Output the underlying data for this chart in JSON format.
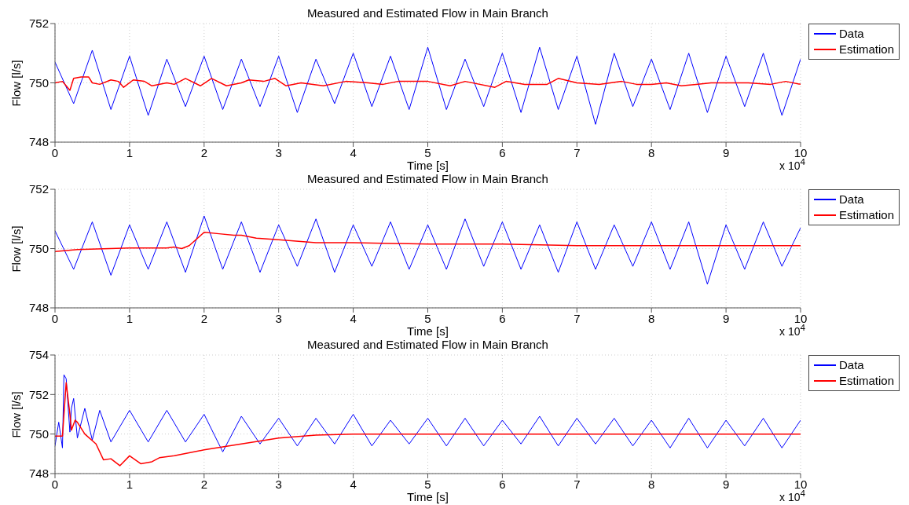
{
  "chart_data": [
    {
      "type": "line",
      "title": "Measured and Estimated Flow in Main Branch",
      "xlabel": "Time [s]",
      "ylabel": "Flow [l/s]",
      "annotations": [
        "x 10$^{4}$"
      ],
      "xlim": [
        0,
        10
      ],
      "xticks": [
        0,
        1,
        2,
        3,
        4,
        5,
        6,
        7,
        8,
        9,
        10
      ],
      "ylim": [
        748,
        752
      ],
      "yticks": [
        748,
        750,
        752
      ],
      "grid": true,
      "legend": "top right",
      "series": [
        {
          "name": "Data",
          "color": "#0000ff",
          "x": [
            0,
            0.25,
            0.5,
            0.75,
            1,
            1.25,
            1.5,
            1.75,
            2,
            2.25,
            2.5,
            2.75,
            3,
            3.25,
            3.5,
            3.75,
            4,
            4.25,
            4.5,
            4.75,
            5,
            5.25,
            5.5,
            5.75,
            6,
            6.25,
            6.5,
            6.75,
            7,
            7.25,
            7.5,
            7.75,
            8,
            8.25,
            8.5,
            8.75,
            9,
            9.25,
            9.5,
            9.75,
            10
          ],
          "values": [
            750.7,
            749.3,
            751.1,
            749.1,
            750.9,
            748.9,
            750.8,
            749.2,
            750.9,
            749.1,
            750.8,
            749.2,
            750.9,
            749.0,
            750.8,
            749.3,
            751.0,
            749.2,
            750.9,
            749.1,
            751.2,
            749.1,
            750.8,
            749.2,
            751.0,
            749.0,
            751.2,
            749.1,
            750.9,
            748.6,
            751.0,
            749.2,
            750.8,
            749.1,
            751.0,
            749.0,
            750.9,
            749.2,
            751.0,
            748.9,
            750.8
          ]
        },
        {
          "name": "Estimation",
          "color": "#ff0000",
          "x": [
            0,
            0.1,
            0.15,
            0.2,
            0.25,
            0.35,
            0.45,
            0.5,
            0.6,
            0.75,
            0.85,
            0.92,
            1.05,
            1.2,
            1.3,
            1.5,
            1.6,
            1.75,
            1.95,
            2.1,
            2.3,
            2.5,
            2.6,
            2.8,
            2.95,
            3.1,
            3.3,
            3.6,
            3.9,
            4.2,
            4.4,
            4.6,
            5,
            5.3,
            5.5,
            5.9,
            6.05,
            6.3,
            6.6,
            6.75,
            7,
            7.3,
            7.6,
            7.8,
            8,
            8.2,
            8.4,
            8.6,
            8.8,
            9,
            9.3,
            9.6,
            9.8,
            10
          ],
          "values": [
            750.0,
            750.05,
            749.9,
            749.75,
            750.15,
            750.2,
            750.2,
            750.0,
            749.95,
            750.1,
            750.05,
            749.85,
            750.1,
            750.05,
            749.9,
            750.0,
            749.95,
            750.15,
            749.9,
            750.15,
            749.9,
            750.0,
            750.1,
            750.05,
            750.15,
            749.9,
            750.0,
            749.9,
            750.05,
            750.0,
            749.95,
            750.05,
            750.05,
            749.9,
            750.05,
            749.85,
            750.05,
            749.95,
            749.95,
            750.15,
            750.0,
            749.95,
            750.05,
            749.95,
            749.95,
            750.0,
            749.9,
            749.95,
            750.0,
            750.0,
            750.0,
            749.95,
            750.05,
            749.95
          ]
        }
      ]
    },
    {
      "type": "line",
      "title": "Measured and Estimated Flow in Main Branch",
      "xlabel": "Time [s]",
      "ylabel": "Flow [l/s]",
      "annotations": [
        "x 10$^{4}$"
      ],
      "xlim": [
        0,
        10
      ],
      "xticks": [
        0,
        1,
        2,
        3,
        4,
        5,
        6,
        7,
        8,
        9,
        10
      ],
      "ylim": [
        748,
        752
      ],
      "yticks": [
        748,
        750,
        752
      ],
      "grid": true,
      "legend": "top right",
      "series": [
        {
          "name": "Data",
          "color": "#0000ff",
          "x": [
            0,
            0.25,
            0.5,
            0.75,
            1,
            1.25,
            1.5,
            1.75,
            2,
            2.25,
            2.5,
            2.75,
            3,
            3.25,
            3.5,
            3.75,
            4,
            4.25,
            4.5,
            4.75,
            5,
            5.25,
            5.5,
            5.75,
            6,
            6.25,
            6.5,
            6.75,
            7,
            7.25,
            7.5,
            7.75,
            8,
            8.25,
            8.5,
            8.75,
            9,
            9.25,
            9.5,
            9.75,
            10
          ],
          "values": [
            750.6,
            749.3,
            750.9,
            749.1,
            750.8,
            749.3,
            750.9,
            749.2,
            751.1,
            749.3,
            750.9,
            749.2,
            750.8,
            749.4,
            751.0,
            749.2,
            750.8,
            749.4,
            750.9,
            749.3,
            750.8,
            749.3,
            751.0,
            749.4,
            750.9,
            749.3,
            750.8,
            749.2,
            750.9,
            749.3,
            750.8,
            749.4,
            750.9,
            749.3,
            750.9,
            748.8,
            750.8,
            749.3,
            750.9,
            749.4,
            750.7
          ]
        },
        {
          "name": "Estimation",
          "color": "#ff0000",
          "x": [
            0,
            0.3,
            1,
            1.5,
            1.6,
            1.7,
            1.8,
            2,
            2.2,
            2.4,
            2.5,
            2.7,
            3,
            3.5,
            4,
            5,
            6,
            7,
            8,
            9,
            10
          ],
          "values": [
            749.9,
            749.97,
            750.02,
            750.02,
            750.05,
            750.0,
            750.1,
            750.55,
            750.5,
            750.45,
            750.45,
            750.35,
            750.3,
            750.2,
            750.2,
            750.15,
            750.15,
            750.1,
            750.1,
            750.1,
            750.1
          ]
        }
      ]
    },
    {
      "type": "line",
      "title": "Measured and Estimated Flow in Main Branch",
      "xlabel": "Time [s]",
      "ylabel": "Flow [l/s]",
      "annotations": [
        "x 10$^{4}$"
      ],
      "xlim": [
        0,
        10
      ],
      "xticks": [
        0,
        1,
        2,
        3,
        4,
        5,
        6,
        7,
        8,
        9,
        10
      ],
      "ylim": [
        748,
        754
      ],
      "yticks": [
        748,
        750,
        752,
        754
      ],
      "grid": true,
      "legend": "top right",
      "series": [
        {
          "name": "Data",
          "color": "#0000ff",
          "x": [
            0,
            0.05,
            0.1,
            0.12,
            0.15,
            0.2,
            0.22,
            0.25,
            0.3,
            0.4,
            0.5,
            0.6,
            0.75,
            1,
            1.25,
            1.5,
            1.75,
            2,
            2.25,
            2.5,
            2.75,
            3,
            3.25,
            3.5,
            3.75,
            4,
            4.25,
            4.5,
            4.75,
            5,
            5.25,
            5.5,
            5.75,
            6,
            6.25,
            6.5,
            6.75,
            7,
            7.25,
            7.5,
            7.75,
            8,
            8.25,
            8.5,
            8.75,
            9,
            9.25,
            9.5,
            9.75,
            10
          ],
          "values": [
            749.4,
            750.6,
            749.3,
            753.0,
            752.8,
            750.1,
            751.3,
            751.8,
            749.8,
            751.3,
            749.7,
            751.2,
            749.6,
            751.2,
            749.6,
            751.2,
            749.6,
            751.0,
            749.1,
            750.9,
            749.5,
            750.8,
            749.4,
            750.8,
            749.5,
            751.0,
            749.4,
            750.7,
            749.5,
            750.8,
            749.4,
            750.8,
            749.4,
            750.7,
            749.5,
            750.9,
            749.4,
            750.8,
            749.5,
            750.8,
            749.4,
            750.7,
            749.3,
            750.8,
            749.3,
            750.7,
            749.4,
            750.8,
            749.3,
            750.7
          ]
        },
        {
          "name": "Estimation",
          "color": "#ff0000",
          "x": [
            0,
            0.1,
            0.15,
            0.2,
            0.22,
            0.27,
            0.3,
            0.4,
            0.55,
            0.65,
            0.75,
            0.87,
            1,
            1.15,
            1.3,
            1.4,
            1.6,
            1.8,
            2,
            2.5,
            3,
            3.5,
            4,
            5,
            10
          ],
          "values": [
            749.9,
            749.9,
            752.6,
            751.0,
            750.2,
            750.7,
            750.6,
            750.0,
            749.5,
            748.7,
            748.75,
            748.4,
            748.9,
            748.5,
            748.6,
            748.8,
            748.9,
            749.05,
            749.2,
            749.5,
            749.8,
            749.95,
            750.0,
            750.0,
            750.0
          ]
        }
      ]
    }
  ]
}
